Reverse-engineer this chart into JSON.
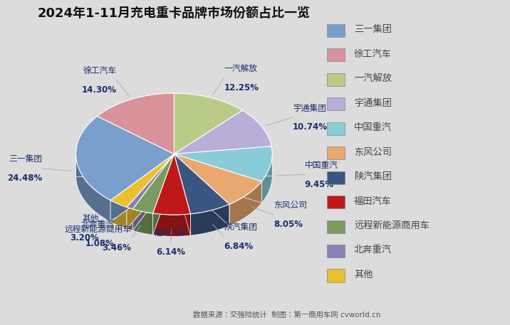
{
  "title": "2024年1-11月充电重卡品牌市场份额占比一览",
  "footnote": "数据来源：交强险统计  制图：第一商用车网 cvworld.cn",
  "labels": [
    "三一集团",
    "徐工汽车",
    "一汽解放",
    "宇通集团",
    "中国重汽",
    "东风公司",
    "陕汽集团",
    "福田汽车",
    "远程新能源商用车",
    "北奔重汽",
    "其他"
  ],
  "values": [
    24.48,
    14.3,
    12.25,
    10.74,
    9.45,
    8.05,
    6.84,
    6.14,
    3.46,
    1.08,
    3.2
  ],
  "pie_order": [
    2,
    3,
    4,
    5,
    6,
    7,
    8,
    9,
    10,
    0,
    1
  ],
  "colors": [
    "#7B9FCC",
    "#D9919A",
    "#B8CC88",
    "#B8AED8",
    "#8ACCD8",
    "#E8A870",
    "#3A5580",
    "#C01818",
    "#7A9A60",
    "#8880B8",
    "#E8C030"
  ],
  "edge_colors": [
    "#5A7AAA",
    "#B87080",
    "#90A860",
    "#9088B8",
    "#60AAB8",
    "#C88050",
    "#283860",
    "#A00010",
    "#5A7A40",
    "#685898",
    "#C0A010"
  ],
  "background_color": "#DCDCDC",
  "label_color": "#1a2e6e",
  "legend_bg": "#F0F0F0",
  "startangle": 90,
  "depth": 0.22,
  "title_fontsize": 13,
  "label_fontsize": 8.5,
  "legend_fontsize": 9.5
}
